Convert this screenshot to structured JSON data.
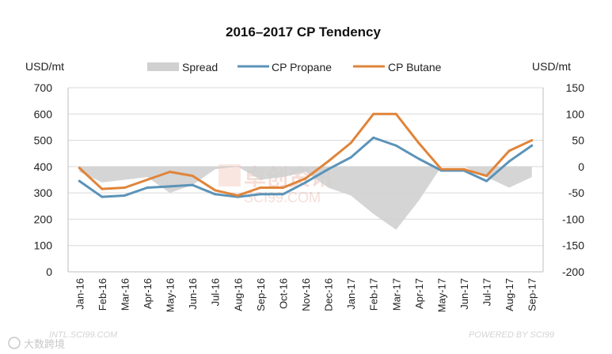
{
  "chart_data": {
    "type": "line",
    "title": "2016–2017 CP Tendency",
    "ylabel_left": "USD/mt",
    "ylabel_right": "USD/mt",
    "categories": [
      "Jan-16",
      "Feb-16",
      "Mar-16",
      "Apr-16",
      "May-16",
      "Jun-16",
      "Jul-16",
      "Aug-16",
      "Sep-16",
      "Oct-16",
      "Nov-16",
      "Dec-16",
      "Jan-17",
      "Feb-17",
      "Mar-17",
      "Apr-17",
      "May-17",
      "Jun-17",
      "Jul-17",
      "Aug-17",
      "Sep-17"
    ],
    "ylim_left": [
      0,
      700
    ],
    "yticks_left": [
      0,
      100,
      200,
      300,
      400,
      500,
      600,
      700
    ],
    "ylim_right": [
      -200,
      150
    ],
    "yticks_right": [
      -200,
      -150,
      -100,
      -50,
      0,
      50,
      100,
      150
    ],
    "grid": true,
    "legend_position": "top",
    "series": [
      {
        "name": "Spread",
        "type": "area",
        "axis": "right",
        "color": "#d0d0d0",
        "values": [
          -10,
          -30,
          -25,
          -20,
          -50,
          -35,
          -5,
          0,
          -25,
          -20,
          -10,
          -40,
          -55,
          -90,
          -120,
          -65,
          0,
          0,
          -20,
          -40,
          -20
        ]
      },
      {
        "name": "CP Propane",
        "type": "line",
        "axis": "left",
        "color": "#5b93b8",
        "values": [
          345,
          285,
          290,
          320,
          325,
          330,
          295,
          285,
          295,
          295,
          340,
          390,
          435,
          510,
          480,
          430,
          385,
          385,
          345,
          420,
          480
        ]
      },
      {
        "name": "CP Butane",
        "type": "line",
        "axis": "left",
        "color": "#e0843a",
        "values": [
          395,
          315,
          320,
          350,
          380,
          365,
          310,
          290,
          320,
          320,
          355,
          420,
          490,
          600,
          600,
          490,
          390,
          390,
          365,
          460,
          500
        ]
      }
    ]
  },
  "watermarks": {
    "center_cn": "卓创资讯",
    "center_en": "SCI99.COM",
    "bottom_left": "INTL.SCI99.COM",
    "bottom_right": "POWERED BY SCI99",
    "corner_cn": "大数跨境"
  }
}
